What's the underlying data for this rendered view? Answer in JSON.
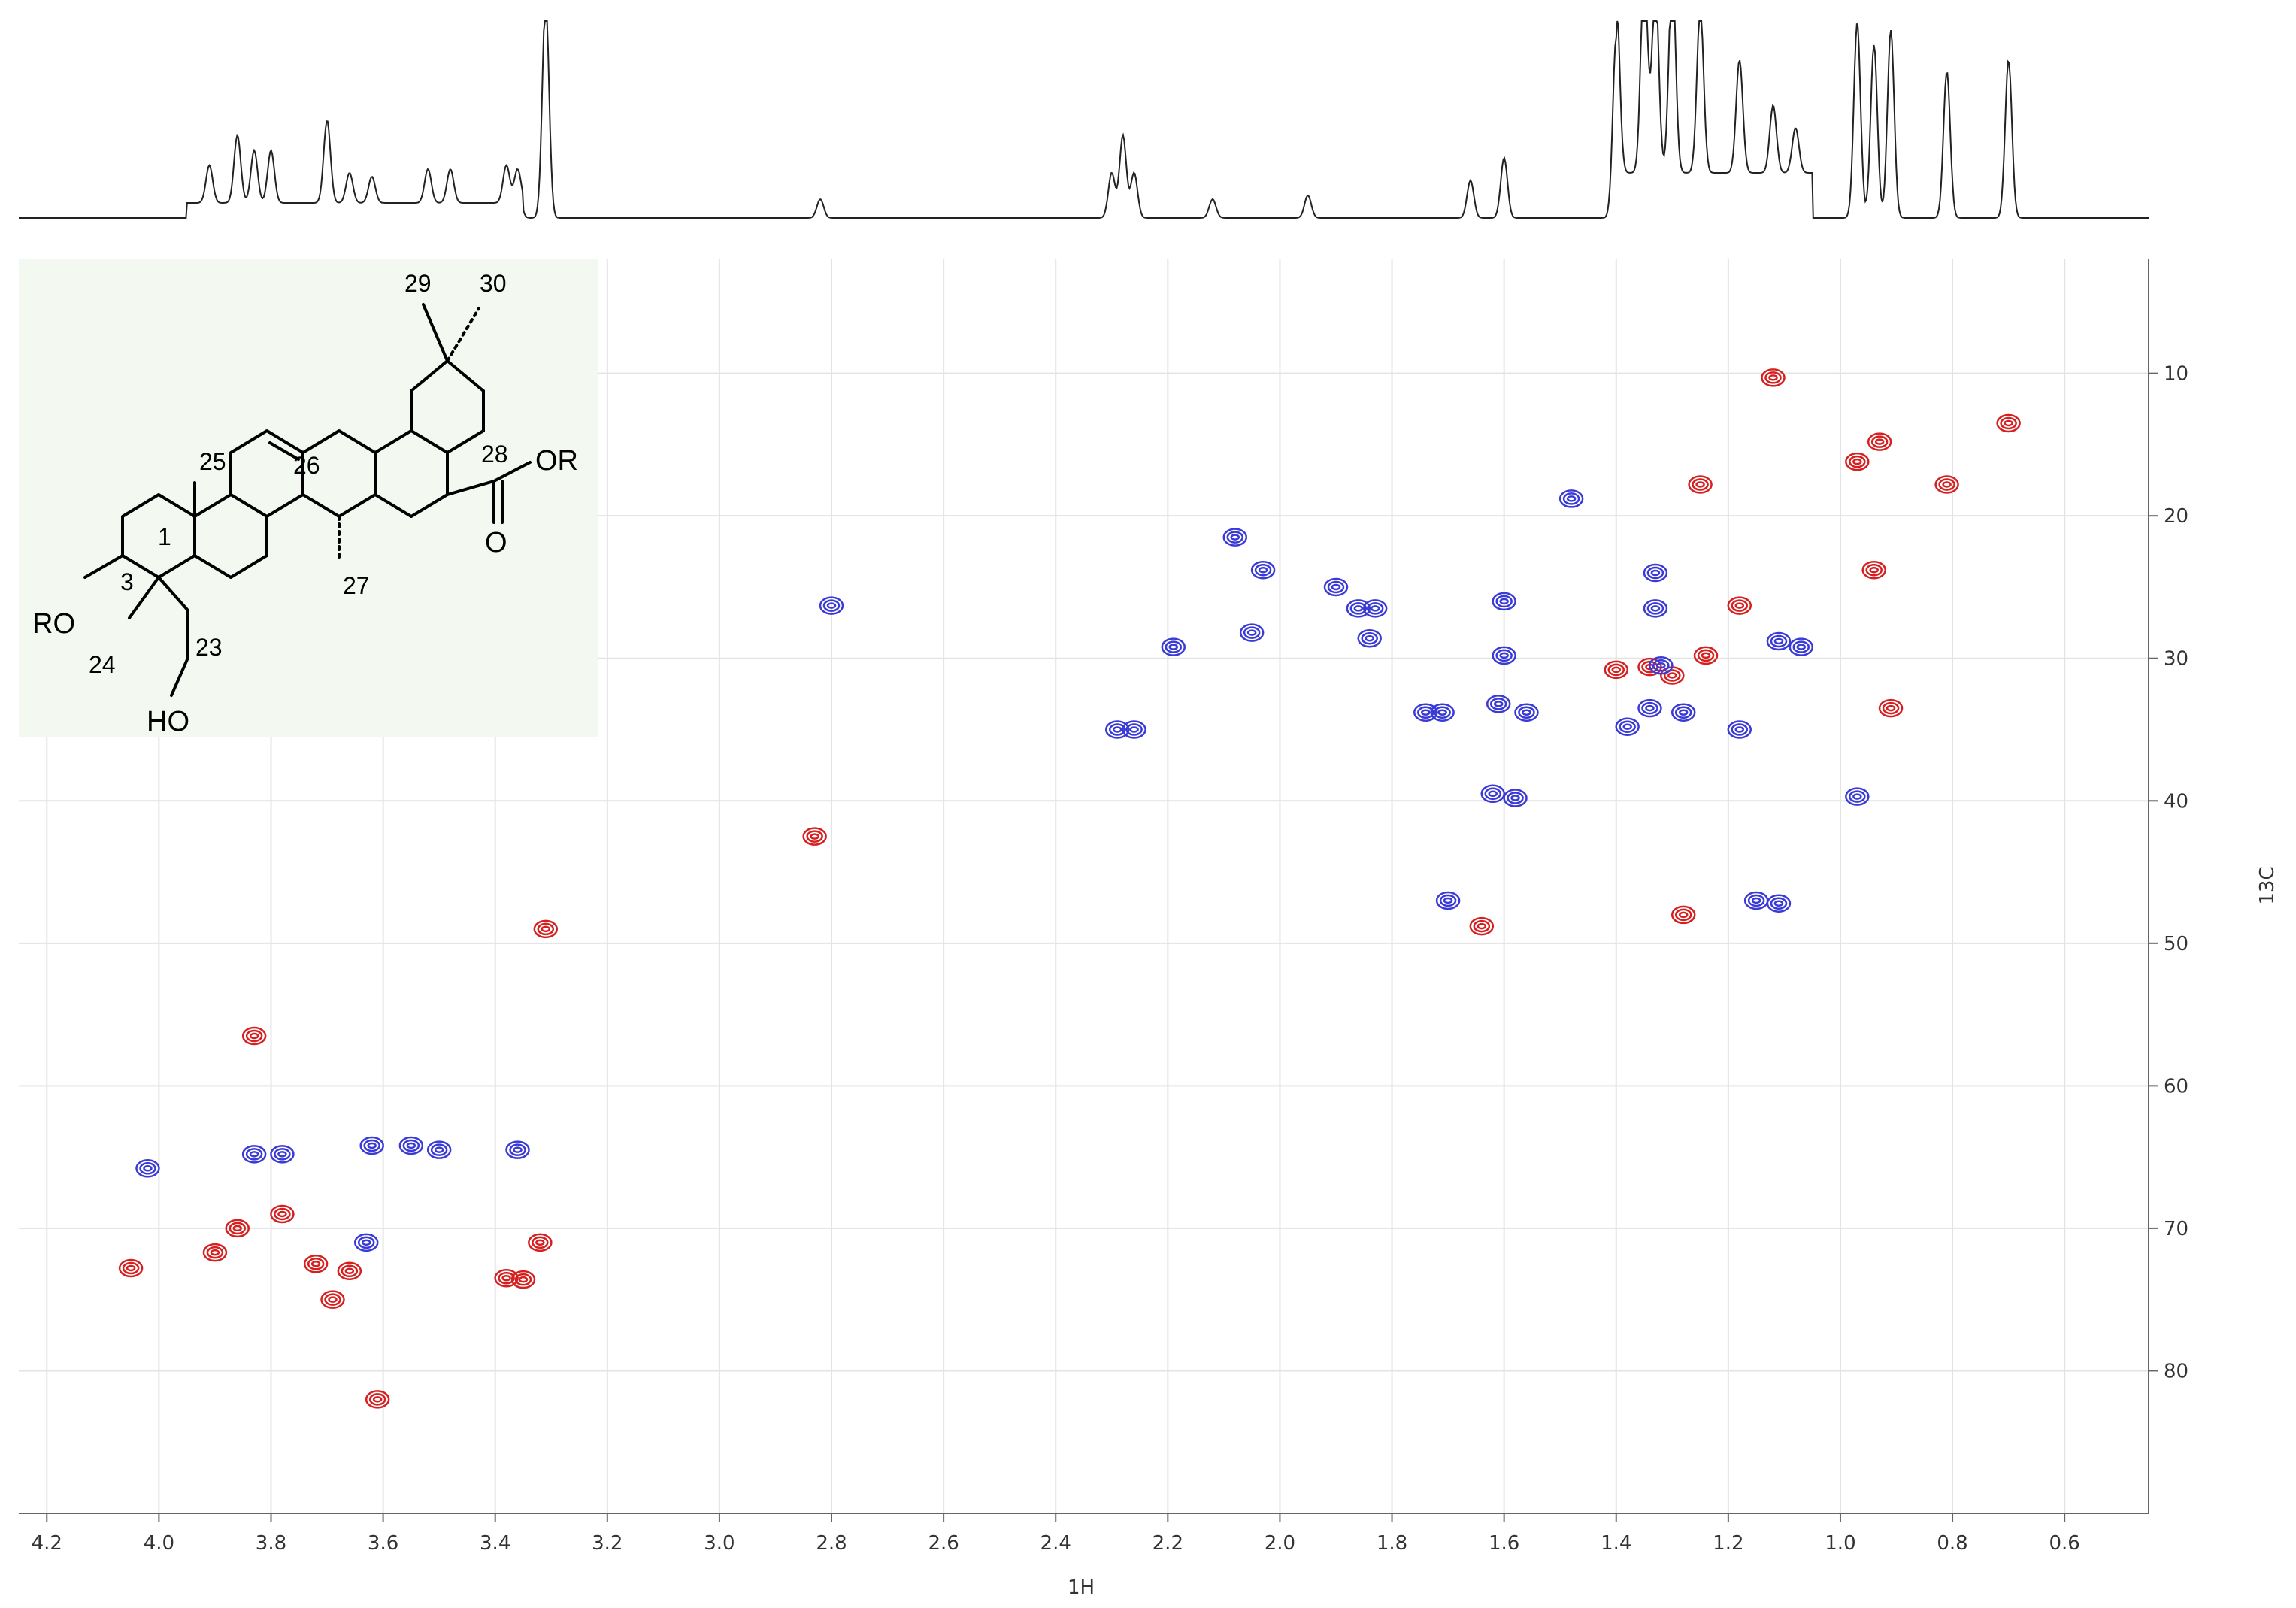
{
  "chart_data": {
    "type": "heatmap",
    "subtype": "2D NMR HSQC contour plot",
    "xlabel": "1H",
    "ylabel": "13C",
    "xlim": [
      4.25,
      0.45
    ],
    "ylim": [
      90,
      2
    ],
    "x_ticks": [
      "4.2",
      "4.0",
      "3.8",
      "3.6",
      "3.4",
      "3.2",
      "3.0",
      "2.8",
      "2.6",
      "2.4",
      "2.2",
      "2.0",
      "1.8",
      "1.6",
      "1.4",
      "1.2",
      "1.0",
      "0.8",
      "0.6"
    ],
    "y_ticks": [
      "10",
      "20",
      "30",
      "40",
      "50",
      "60",
      "70",
      "80"
    ],
    "grid": true,
    "series": [
      {
        "color": "#d62020",
        "peaks": [
          [
            1.12,
            10.3
          ],
          [
            0.93,
            14.8
          ],
          [
            0.97,
            16.2
          ],
          [
            0.7,
            13.5
          ],
          [
            1.25,
            17.8
          ],
          [
            0.81,
            17.8
          ],
          [
            0.94,
            23.8
          ],
          [
            1.18,
            26.3
          ],
          [
            1.24,
            29.8
          ],
          [
            1.3,
            31.2
          ],
          [
            1.34,
            30.6
          ],
          [
            1.4,
            30.8
          ],
          [
            0.91,
            33.5
          ],
          [
            2.83,
            42.5
          ],
          [
            3.31,
            49.0
          ],
          [
            1.64,
            48.8
          ],
          [
            1.28,
            48.0
          ],
          [
            3.83,
            56.5
          ],
          [
            3.78,
            69.0
          ],
          [
            3.86,
            70.0
          ],
          [
            3.9,
            71.7
          ],
          [
            4.05,
            72.8
          ],
          [
            3.72,
            72.5
          ],
          [
            3.69,
            75.0
          ],
          [
            3.66,
            73.0
          ],
          [
            3.38,
            73.5
          ],
          [
            3.35,
            73.6
          ],
          [
            3.32,
            71.0
          ],
          [
            3.61,
            82.0
          ]
        ]
      },
      {
        "color": "#3a3ad6",
        "peaks": [
          [
            2.8,
            26.3
          ],
          [
            2.29,
            35.0
          ],
          [
            2.26,
            35.0
          ],
          [
            2.08,
            21.5
          ],
          [
            2.03,
            23.8
          ],
          [
            2.05,
            28.2
          ],
          [
            2.19,
            29.2
          ],
          [
            1.9,
            25.0
          ],
          [
            1.86,
            26.5
          ],
          [
            1.83,
            26.5
          ],
          [
            1.84,
            28.6
          ],
          [
            1.48,
            18.8
          ],
          [
            1.6,
            26.0
          ],
          [
            1.6,
            29.8
          ],
          [
            1.61,
            33.2
          ],
          [
            1.56,
            33.8
          ],
          [
            1.74,
            33.8
          ],
          [
            1.71,
            33.8
          ],
          [
            1.33,
            24.0
          ],
          [
            1.33,
            26.5
          ],
          [
            1.32,
            30.5
          ],
          [
            1.34,
            33.5
          ],
          [
            1.28,
            33.8
          ],
          [
            1.38,
            34.8
          ],
          [
            1.18,
            35.0
          ],
          [
            1.11,
            28.8
          ],
          [
            1.07,
            29.2
          ],
          [
            1.62,
            39.5
          ],
          [
            1.58,
            39.8
          ],
          [
            0.97,
            39.7
          ],
          [
            1.7,
            47.0
          ],
          [
            1.15,
            47.0
          ],
          [
            1.11,
            47.2
          ],
          [
            4.02,
            65.8
          ],
          [
            3.83,
            64.8
          ],
          [
            3.78,
            64.8
          ],
          [
            3.62,
            64.2
          ],
          [
            3.55,
            64.2
          ],
          [
            3.5,
            64.5
          ],
          [
            3.36,
            64.5
          ],
          [
            3.63,
            71.0
          ]
        ]
      }
    ],
    "projection_1h": {
      "baseline_note": "1D 1H spectrum shown above the 2D map"
    }
  },
  "structure": {
    "labels": {
      "ro_left": "RO",
      "ho": "HO",
      "or_right": "OR",
      "o": "O",
      "c1": "1",
      "c3": "3",
      "c23": "23",
      "c24": "24",
      "c25": "25",
      "c26": "26",
      "c27": "27",
      "c28": "28",
      "c29": "29",
      "c30": "30"
    }
  }
}
